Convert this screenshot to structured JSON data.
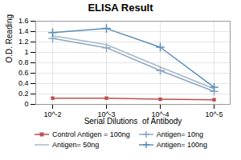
{
  "chart_data": {
    "type": "line",
    "title": "ELISA Result",
    "x_label": "Serial Dilutions  of Antibody",
    "y_label": "O.D. Reading",
    "categories": [
      "10^-2",
      "10^-3",
      "10^-4",
      "10^-5"
    ],
    "series": [
      {
        "name": "Control Antigen = 100ng",
        "color": "#c0504d",
        "marker": "square",
        "values": [
          0.12,
          0.12,
          0.1,
          0.09
        ]
      },
      {
        "name": "Antigen= 10ng",
        "color": "#8da6bf",
        "marker": "plus",
        "values": [
          1.27,
          1.09,
          0.65,
          0.25
        ]
      },
      {
        "name": "Antigen= 50ng",
        "color": "#a8b8c8",
        "marker": "none",
        "values": [
          1.32,
          1.15,
          0.72,
          0.3
        ]
      },
      {
        "name": "Antigen= 100ng",
        "color": "#5b8db8",
        "marker": "plus",
        "values": [
          1.38,
          1.46,
          1.1,
          0.33
        ]
      }
    ],
    "ylim": [
      0,
      1.6
    ],
    "yticks": [
      0,
      0.2,
      0.4,
      0.6,
      0.8,
      1,
      1.2,
      1.4,
      1.6
    ],
    "grid": true,
    "legend": "bottom"
  }
}
